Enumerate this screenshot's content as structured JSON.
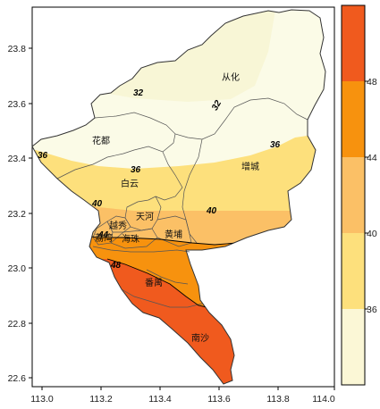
{
  "map": {
    "x_axis": {
      "ticks": [
        "113.0",
        "113.2",
        "113.4",
        "113.6",
        "113.8",
        "114.0"
      ]
    },
    "y_axis": {
      "ticks": [
        "22.6",
        "22.8",
        "23.0",
        "23.2",
        "23.4",
        "23.6",
        "23.8"
      ]
    },
    "districts": [
      {
        "id": "conghua",
        "label": "从化"
      },
      {
        "id": "huadu",
        "label": "花都"
      },
      {
        "id": "baiyun",
        "label": "白云"
      },
      {
        "id": "zengcheng",
        "label": "增城"
      },
      {
        "id": "tianhe",
        "label": "天河"
      },
      {
        "id": "yuexiu",
        "label": "越秀"
      },
      {
        "id": "liwan",
        "label": "荔湾"
      },
      {
        "id": "haizhu",
        "label": "海珠"
      },
      {
        "id": "huangpu",
        "label": "黄埔"
      },
      {
        "id": "panyu",
        "label": "番禺"
      },
      {
        "id": "nansha",
        "label": "南沙"
      }
    ],
    "contour_labels": [
      "32",
      "32",
      "36",
      "36",
      "36",
      "40",
      "40",
      "44",
      "48"
    ]
  },
  "colorbar": {
    "labels": [
      "48",
      "44",
      "40",
      "36"
    ],
    "bands": [
      {
        "range": "above 48",
        "color": "#f05a1e"
      },
      {
        "range": "44-48",
        "color": "#f7920e"
      },
      {
        "range": "40-44",
        "color": "#fbc066"
      },
      {
        "range": "36-40",
        "color": "#fde07c"
      },
      {
        "range": "below 36",
        "color": "#fbf7d6"
      }
    ]
  },
  "colors": {
    "lt32": "#fbfbe7",
    "32_36": "#f8f6d6",
    "36_40": "#fde07c",
    "40_44": "#fbc066",
    "44_48": "#f7920e",
    "gt48": "#f05a1e"
  }
}
